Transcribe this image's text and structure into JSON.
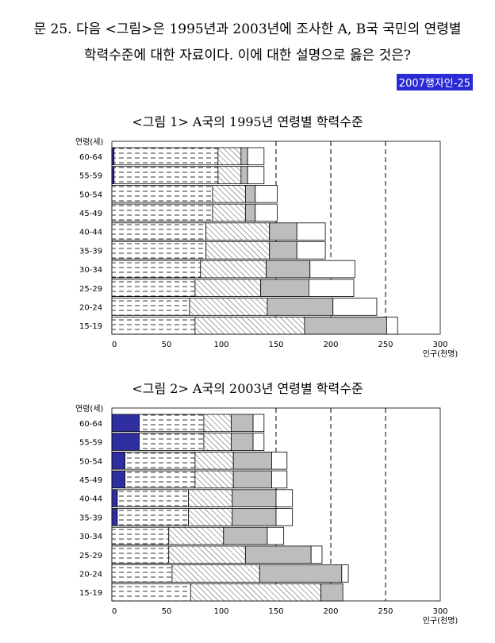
{
  "question": {
    "line1": "문 25. 다음 <그림>은 1995년과 2003년에 조사한 A, B국 국민의 연령별",
    "line2": "학력수준에 대한 자료이다. 이에 대한 설명으로 옳은 것은?",
    "tag": "2007행자인-25"
  },
  "colors": {
    "segment1": "#2e2e9e",
    "segment2_pattern": "dashed-lines",
    "segment3_pattern": "diagonal-hatch",
    "segment4": "#bdbdbd",
    "segment5": "#ffffff",
    "tag_bg": "#2b2bd6"
  },
  "chart_data": [
    {
      "type": "stacked-bar-horizontal",
      "title": "<그림 1> A국의 1995년 연령별 학력수준",
      "ylabel": "연령(세)",
      "xlabel": "인구(천명)",
      "xlim": [
        0,
        300
      ],
      "xticks": [
        "0",
        "50",
        "100",
        "150",
        "200",
        "250",
        "300"
      ],
      "dashed_lines_at": [
        150,
        200,
        250
      ],
      "categories": [
        "60-64",
        "55-59",
        "50-54",
        "45-49",
        "40-44",
        "35-39",
        "30-34",
        "25-29",
        "20-24",
        "15-19"
      ],
      "series": [
        {
          "values": [
            2,
            2,
            0,
            0,
            0,
            0,
            0,
            0,
            0,
            0
          ]
        },
        {
          "values": [
            95,
            95,
            92,
            92,
            86,
            86,
            81,
            76,
            71,
            76
          ]
        },
        {
          "values": [
            21,
            21,
            30,
            30,
            58,
            58,
            60,
            60,
            71,
            100
          ]
        },
        {
          "values": [
            6,
            6,
            9,
            9,
            25,
            25,
            40,
            44,
            60,
            75
          ]
        },
        {
          "values": [
            15,
            15,
            20,
            20,
            26,
            26,
            41,
            41,
            40,
            10
          ]
        }
      ]
    },
    {
      "type": "stacked-bar-horizontal",
      "title": "<그림 2> A국의 2003년 연령별 학력수준",
      "ylabel": "연령(세)",
      "xlabel": "인구(천명)",
      "xlim": [
        0,
        300
      ],
      "xticks": [
        "0",
        "50",
        "100",
        "150",
        "200",
        "250",
        "300"
      ],
      "dashed_lines_at": [
        150,
        200,
        250
      ],
      "categories": [
        "60-64",
        "55-59",
        "50-54",
        "45-49",
        "40-44",
        "35-39",
        "30-34",
        "25-29",
        "20-24",
        "15-19"
      ],
      "series": [
        {
          "values": [
            25,
            25,
            12,
            12,
            5,
            5,
            0,
            0,
            0,
            0
          ]
        },
        {
          "values": [
            59,
            59,
            64,
            64,
            65,
            65,
            52,
            52,
            55,
            72
          ]
        },
        {
          "values": [
            25,
            25,
            35,
            35,
            40,
            40,
            50,
            70,
            80,
            119
          ]
        },
        {
          "values": [
            20,
            20,
            35,
            35,
            40,
            40,
            40,
            60,
            75,
            20
          ]
        },
        {
          "values": [
            10,
            10,
            14,
            14,
            15,
            15,
            15,
            10,
            6,
            0
          ]
        }
      ]
    }
  ]
}
